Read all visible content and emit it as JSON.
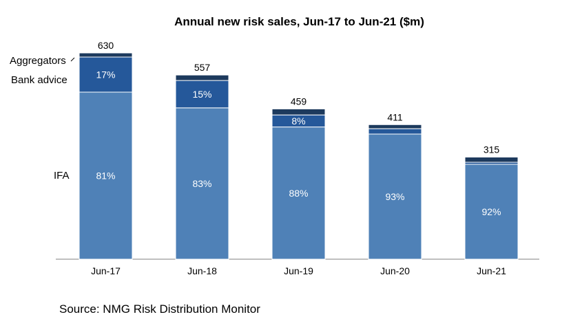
{
  "chart_data": {
    "type": "bar",
    "stacked": true,
    "title": "Annual new risk sales, Jun-17 to Jun-21 ($m)",
    "categories": [
      "Jun-17",
      "Jun-18",
      "Jun-19",
      "Jun-20",
      "Jun-21"
    ],
    "totals": [
      630,
      557,
      459,
      411,
      315
    ],
    "total_labels": [
      "630",
      "557",
      "459",
      "411",
      "315"
    ],
    "series": [
      {
        "name": "IFA",
        "share_pct": [
          81,
          83,
          88,
          93,
          92
        ],
        "labels": [
          "81%",
          "83%",
          "88%",
          "93%",
          "92%"
        ],
        "color": "#4f81b7"
      },
      {
        "name": "Bank advice",
        "share_pct": [
          17,
          15,
          8,
          4,
          2
        ],
        "labels": [
          "17%",
          "15%",
          "8%",
          "",
          ""
        ],
        "color": "#25589a"
      },
      {
        "name": "Aggregators",
        "share_pct": [
          2,
          3,
          4,
          3,
          5
        ],
        "labels": [
          "",
          "",
          "",
          "",
          ""
        ],
        "color": "#1d3a5d"
      }
    ],
    "ylim": [
      0,
      630
    ],
    "grid": false,
    "legend": "left inline labels",
    "source": "Source: NMG Risk Distribution Monitor"
  }
}
